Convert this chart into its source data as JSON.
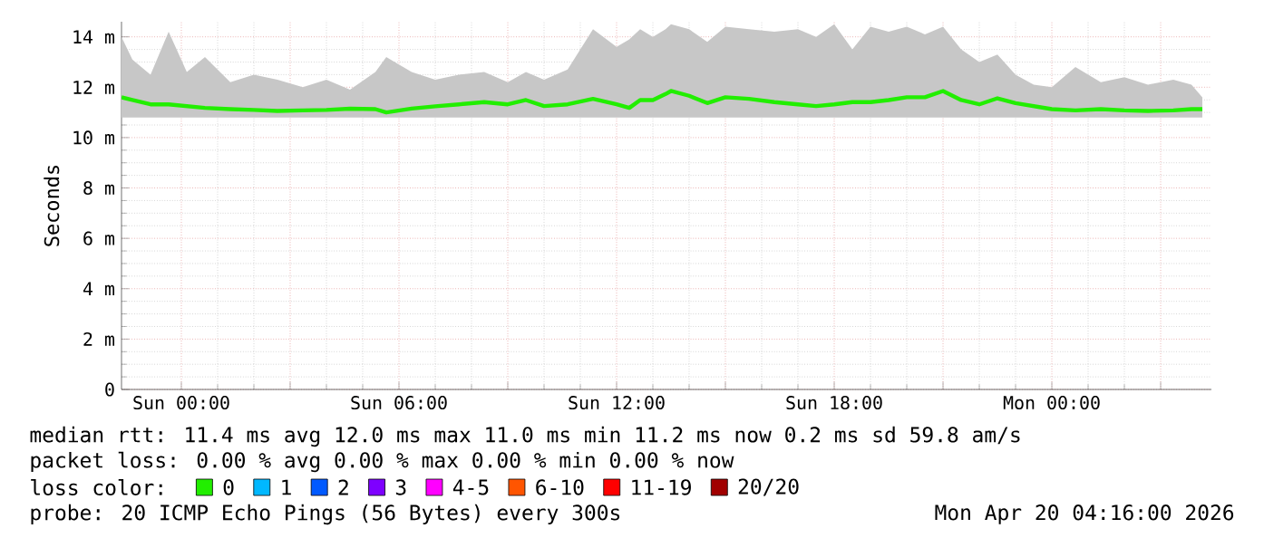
{
  "chart_data": {
    "type": "line",
    "ylabel": "Seconds",
    "x": [
      "2026-04-18T22:21",
      "2026-04-18T22:39",
      "2026-04-18T23:09",
      "2026-04-18T23:39",
      "2026-04-19T00:09",
      "2026-04-19T00:39",
      "2026-04-19T01:21",
      "2026-04-19T02:00",
      "2026-04-19T02:39",
      "2026-04-19T03:21",
      "2026-04-19T04:00",
      "2026-04-19T04:39",
      "2026-04-19T05:21",
      "2026-04-19T05:39",
      "2026-04-19T06:21",
      "2026-04-19T07:00",
      "2026-04-19T07:39",
      "2026-04-19T08:21",
      "2026-04-19T09:00",
      "2026-04-19T09:30",
      "2026-04-19T10:00",
      "2026-04-19T10:39",
      "2026-04-19T11:21",
      "2026-04-19T12:00",
      "2026-04-19T12:21",
      "2026-04-19T12:39",
      "2026-04-19T13:00",
      "2026-04-19T13:21",
      "2026-04-19T13:30",
      "2026-04-19T14:00",
      "2026-04-19T14:30",
      "2026-04-19T15:00",
      "2026-04-19T15:39",
      "2026-04-19T16:21",
      "2026-04-19T17:00",
      "2026-04-19T17:30",
      "2026-04-19T18:00",
      "2026-04-19T18:30",
      "2026-04-19T19:00",
      "2026-04-19T19:30",
      "2026-04-19T20:00",
      "2026-04-19T20:30",
      "2026-04-19T21:00",
      "2026-04-19T21:30",
      "2026-04-19T22:00",
      "2026-04-19T22:30",
      "2026-04-19T23:00",
      "2026-04-19T23:30",
      "2026-04-20T00:00",
      "2026-04-20T00:39",
      "2026-04-20T01:21",
      "2026-04-20T02:00",
      "2026-04-20T02:39",
      "2026-04-20T03:21",
      "2026-04-20T03:51",
      "2026-04-20T04:09"
    ],
    "series": [
      {
        "name": "0",
        "color": "#22ee00",
        "values": [
          11.6,
          11.49,
          11.32,
          11.32,
          11.25,
          11.18,
          11.13,
          11.1,
          11.06,
          11.08,
          11.1,
          11.15,
          11.13,
          11.0,
          11.15,
          11.24,
          11.32,
          11.41,
          11.32,
          11.49,
          11.25,
          11.32,
          11.54,
          11.32,
          11.18,
          11.49,
          11.49,
          11.73,
          11.85,
          11.66,
          11.37,
          11.6,
          11.54,
          11.41,
          11.32,
          11.25,
          11.32,
          11.41,
          11.41,
          11.49,
          11.6,
          11.6,
          11.85,
          11.49,
          11.32,
          11.56,
          11.37,
          11.25,
          11.13,
          11.08,
          11.13,
          11.08,
          11.06,
          11.08,
          11.13,
          11.13
        ],
        "upper": [
          14.0,
          13.1,
          12.5,
          14.2,
          12.6,
          13.2,
          12.2,
          12.5,
          12.3,
          12.0,
          12.3,
          11.9,
          12.6,
          13.2,
          12.6,
          12.3,
          12.5,
          12.6,
          12.2,
          12.6,
          12.3,
          12.7,
          14.3,
          13.6,
          13.9,
          14.3,
          14.0,
          14.3,
          14.5,
          14.3,
          13.8,
          14.4,
          14.3,
          14.2,
          14.3,
          14.0,
          14.5,
          13.5,
          14.4,
          14.2,
          14.4,
          14.1,
          14.4,
          13.5,
          13.0,
          13.3,
          12.5,
          12.1,
          12.0,
          12.8,
          12.2,
          12.4,
          12.1,
          12.3,
          12.1,
          11.6
        ],
        "lower": [
          10.8,
          10.8,
          10.8,
          10.8,
          10.8,
          10.8,
          10.8,
          10.8,
          10.8,
          10.8,
          10.8,
          10.8,
          10.8,
          10.8,
          10.8,
          10.8,
          10.8,
          10.8,
          10.8,
          10.8,
          10.8,
          10.8,
          10.8,
          10.8,
          10.8,
          10.8,
          10.8,
          10.8,
          10.8,
          10.8,
          10.8,
          10.8,
          10.8,
          10.8,
          10.8,
          10.8,
          10.8,
          10.8,
          10.8,
          10.8,
          10.8,
          10.8,
          10.8,
          10.8,
          10.8,
          10.8,
          10.8,
          10.8,
          10.8,
          10.8,
          10.8,
          10.8,
          10.8,
          10.8,
          10.8,
          10.8
        ]
      },
      {
        "name": "1",
        "color": "#00b8ff",
        "values": [
          null,
          null,
          null,
          null,
          null,
          null,
          null,
          null,
          null,
          null,
          null,
          null,
          null,
          null,
          null,
          null,
          null,
          null,
          null,
          null,
          null,
          null,
          null,
          null,
          null,
          null,
          null,
          null,
          null,
          null,
          null,
          null,
          null,
          null,
          null,
          null,
          null,
          null,
          null,
          null,
          null,
          null,
          null,
          null,
          null,
          null,
          null,
          null,
          null,
          null,
          null,
          null,
          null,
          null,
          null,
          null
        ]
      },
      {
        "name": "2",
        "color": "#0059ff",
        "values": [
          null,
          null,
          null,
          null,
          null,
          null,
          null,
          null,
          null,
          null,
          null,
          null,
          null,
          null,
          null,
          null,
          null,
          null,
          null,
          null,
          null,
          null,
          null,
          null,
          null,
          null,
          null,
          null,
          null,
          null,
          null,
          null,
          null,
          null,
          null,
          null,
          null,
          null,
          null,
          null,
          null,
          null,
          null,
          null,
          null,
          null,
          null,
          null,
          null,
          null,
          null,
          null,
          null,
          null,
          null,
          null
        ]
      },
      {
        "name": "3",
        "color": "#7e00ff",
        "values": [
          null,
          null,
          null,
          null,
          null,
          null,
          null,
          null,
          null,
          null,
          null,
          null,
          null,
          null,
          null,
          null,
          null,
          null,
          null,
          null,
          null,
          null,
          null,
          null,
          null,
          null,
          null,
          null,
          null,
          null,
          null,
          null,
          null,
          null,
          null,
          null,
          null,
          null,
          null,
          null,
          null,
          null,
          null,
          null,
          null,
          null,
          null,
          null,
          null,
          null,
          null,
          null,
          null,
          null,
          null,
          null
        ]
      },
      {
        "name": "4-5",
        "color": "#ff00ff",
        "values": [
          null,
          null,
          null,
          null,
          null,
          null,
          null,
          null,
          null,
          null,
          null,
          null,
          null,
          null,
          null,
          null,
          null,
          null,
          null,
          null,
          null,
          null,
          null,
          null,
          null,
          null,
          null,
          null,
          null,
          null,
          null,
          null,
          null,
          null,
          null,
          null,
          null,
          null,
          null,
          null,
          null,
          null,
          null,
          null,
          null,
          null,
          null,
          null,
          null,
          null,
          null,
          null,
          null,
          null,
          null,
          null
        ]
      },
      {
        "name": "6-10",
        "color": "#ff5500",
        "values": [
          null,
          null,
          null,
          null,
          null,
          null,
          null,
          null,
          null,
          null,
          null,
          null,
          null,
          null,
          null,
          null,
          null,
          null,
          null,
          null,
          null,
          null,
          null,
          null,
          null,
          null,
          null,
          null,
          null,
          null,
          null,
          null,
          null,
          null,
          null,
          null,
          null,
          null,
          null,
          null,
          null,
          null,
          null,
          null,
          null,
          null,
          null,
          null,
          null,
          null,
          null,
          null,
          null,
          null,
          null,
          null
        ]
      },
      {
        "name": "11-19",
        "color": "#ff0000",
        "values": [
          null,
          null,
          null,
          null,
          null,
          null,
          null,
          null,
          null,
          null,
          null,
          null,
          null,
          null,
          null,
          null,
          null,
          null,
          null,
          null,
          null,
          null,
          null,
          null,
          null,
          null,
          null,
          null,
          null,
          null,
          null,
          null,
          null,
          null,
          null,
          null,
          null,
          null,
          null,
          null,
          null,
          null,
          null,
          null,
          null,
          null,
          null,
          null,
          null,
          null,
          null,
          null,
          null,
          null,
          null,
          null
        ]
      },
      {
        "name": "20/20",
        "color": "#a10000",
        "values": [
          null,
          null,
          null,
          null,
          null,
          null,
          null,
          null,
          null,
          null,
          null,
          null,
          null,
          null,
          null,
          null,
          null,
          null,
          null,
          null,
          null,
          null,
          null,
          null,
          null,
          null,
          null,
          null,
          null,
          null,
          null,
          null,
          null,
          null,
          null,
          null,
          null,
          null,
          null,
          null,
          null,
          null,
          null,
          null,
          null,
          null,
          null,
          null,
          null,
          null,
          null,
          null,
          null,
          null,
          null,
          null
        ]
      }
    ],
    "legend_title": "loss color:",
    "legend": "bottom",
    "xlim": [
      "2026-04-18T22:21",
      "2026-04-20T04:24"
    ],
    "ylim": [
      0,
      14.6
    ],
    "xticks": [
      {
        "value": "2026-04-19T00:00",
        "label": "Sun 00:00"
      },
      {
        "value": "2026-04-19T03:00",
        "label": null
      },
      {
        "value": "2026-04-19T06:00",
        "label": "Sun 06:00"
      },
      {
        "value": "2026-04-19T09:00",
        "label": null
      },
      {
        "value": "2026-04-19T12:00",
        "label": "Sun 12:00"
      },
      {
        "value": "2026-04-19T15:00",
        "label": null
      },
      {
        "value": "2026-04-19T18:00",
        "label": "Sun 18:00"
      },
      {
        "value": "2026-04-19T21:00",
        "label": null
      },
      {
        "value": "2026-04-20T00:00",
        "label": "Mon 00:00"
      },
      {
        "value": "2026-04-20T03:00",
        "label": null
      }
    ],
    "yticks": [
      0,
      {
        "value": 2,
        "label": "2 m"
      },
      {
        "value": 4,
        "label": "4 m"
      },
      {
        "value": 6,
        "label": "6 m"
      },
      {
        "value": 8,
        "label": "8 m"
      },
      {
        "value": 10,
        "label": "10 m"
      },
      {
        "value": 12,
        "label": "12 m"
      },
      {
        "value": 14,
        "label": "14 m"
      }
    ],
    "grid": true,
    "marker": "none",
    "line_style": "solid",
    "annotations": [
      "median rtt: 11.4 ms avg 12.0 ms max 11.0 ms min 11.2 ms now 0.2 ms sd 59.8 am/s",
      "packet loss: 0.00 % avg 0.00 % max 0.00 % min 0.00 % now",
      "probe: 20 ICMP Echo Pings (56 Bytes) every 300s",
      "Mon Apr 20 04:16:00 2026"
    ]
  }
}
